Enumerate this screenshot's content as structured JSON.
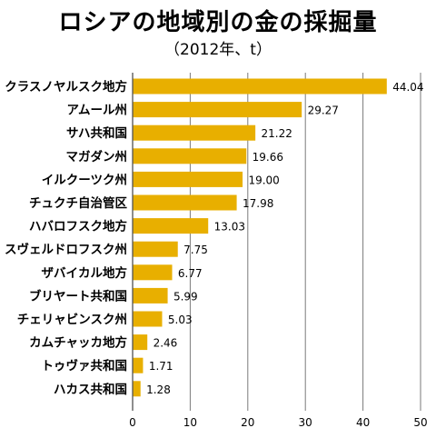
{
  "page": {
    "title": "ロシアの地域別の金の採掘量",
    "subtitle": "（2012年、t）"
  },
  "colors": {
    "bar": "#e8af00",
    "grid": "#7a7a7a",
    "axis": "#444444"
  },
  "chart_data": {
    "type": "bar",
    "orientation": "horizontal",
    "title": "ロシアの地域別の金の採掘量",
    "subtitle": "（2012年、t）",
    "categories": [
      "クラスノヤルスク地方",
      "アムール州",
      "サハ共和国",
      "マガダン州",
      "イルクーツク州",
      "チュクチ自治管区",
      "ハバロフスク地方",
      "スヴェルドロフスク州",
      "ザバイカル地方",
      "ブリヤート共和国",
      "チェリャビンスク州",
      "カムチャッカ地方",
      "トゥヴァ共和国",
      "ハカス共和国"
    ],
    "values": [
      44.04,
      29.27,
      21.22,
      19.66,
      19.0,
      17.98,
      13.03,
      7.75,
      6.77,
      5.99,
      5.03,
      2.46,
      1.71,
      1.28
    ],
    "value_labels": [
      "44.04",
      "29.27",
      "21.22",
      "19.66",
      "19.00",
      "17.98",
      "13.03",
      "7.75",
      "6.77",
      "5.99",
      "5.03",
      "2.46",
      "1.71",
      "1.28"
    ],
    "xlim": [
      0,
      50
    ],
    "xticks": [
      0,
      10,
      20,
      30,
      40,
      50
    ],
    "grid": "vertical",
    "xlabel": "",
    "ylabel": ""
  }
}
